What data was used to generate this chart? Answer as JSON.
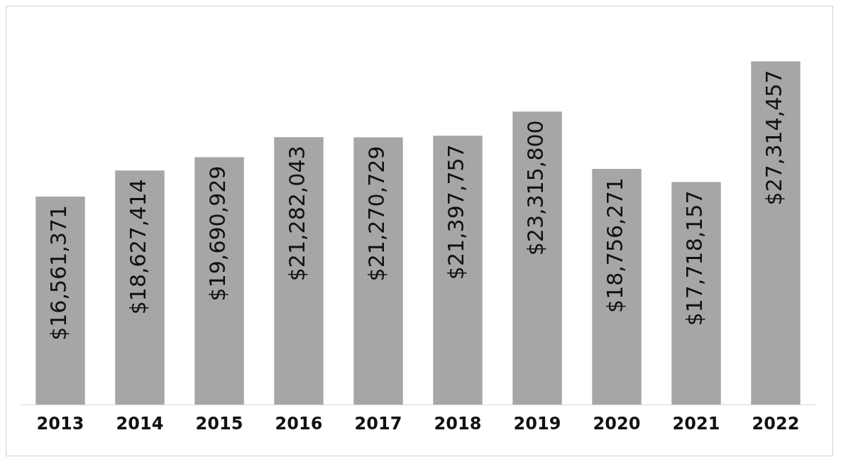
{
  "chart_data": {
    "type": "bar",
    "categories": [
      "2013",
      "2014",
      "2015",
      "2016",
      "2017",
      "2018",
      "2019",
      "2020",
      "2021",
      "2022"
    ],
    "values": [
      16561371,
      18627414,
      19690929,
      21282043,
      21270729,
      21397757,
      23315800,
      18756271,
      17718157,
      27314457
    ],
    "value_labels": [
      "$16,561,371",
      "$18,627,414",
      "$19,690,929",
      "$21,282,043",
      "$21,270,729",
      "$21,397,757",
      "$23,315,800",
      "$18,756,271",
      "$17,718,157",
      "$27,314,457"
    ],
    "color": "#a6a6a6",
    "grid": false,
    "legend": false
  }
}
